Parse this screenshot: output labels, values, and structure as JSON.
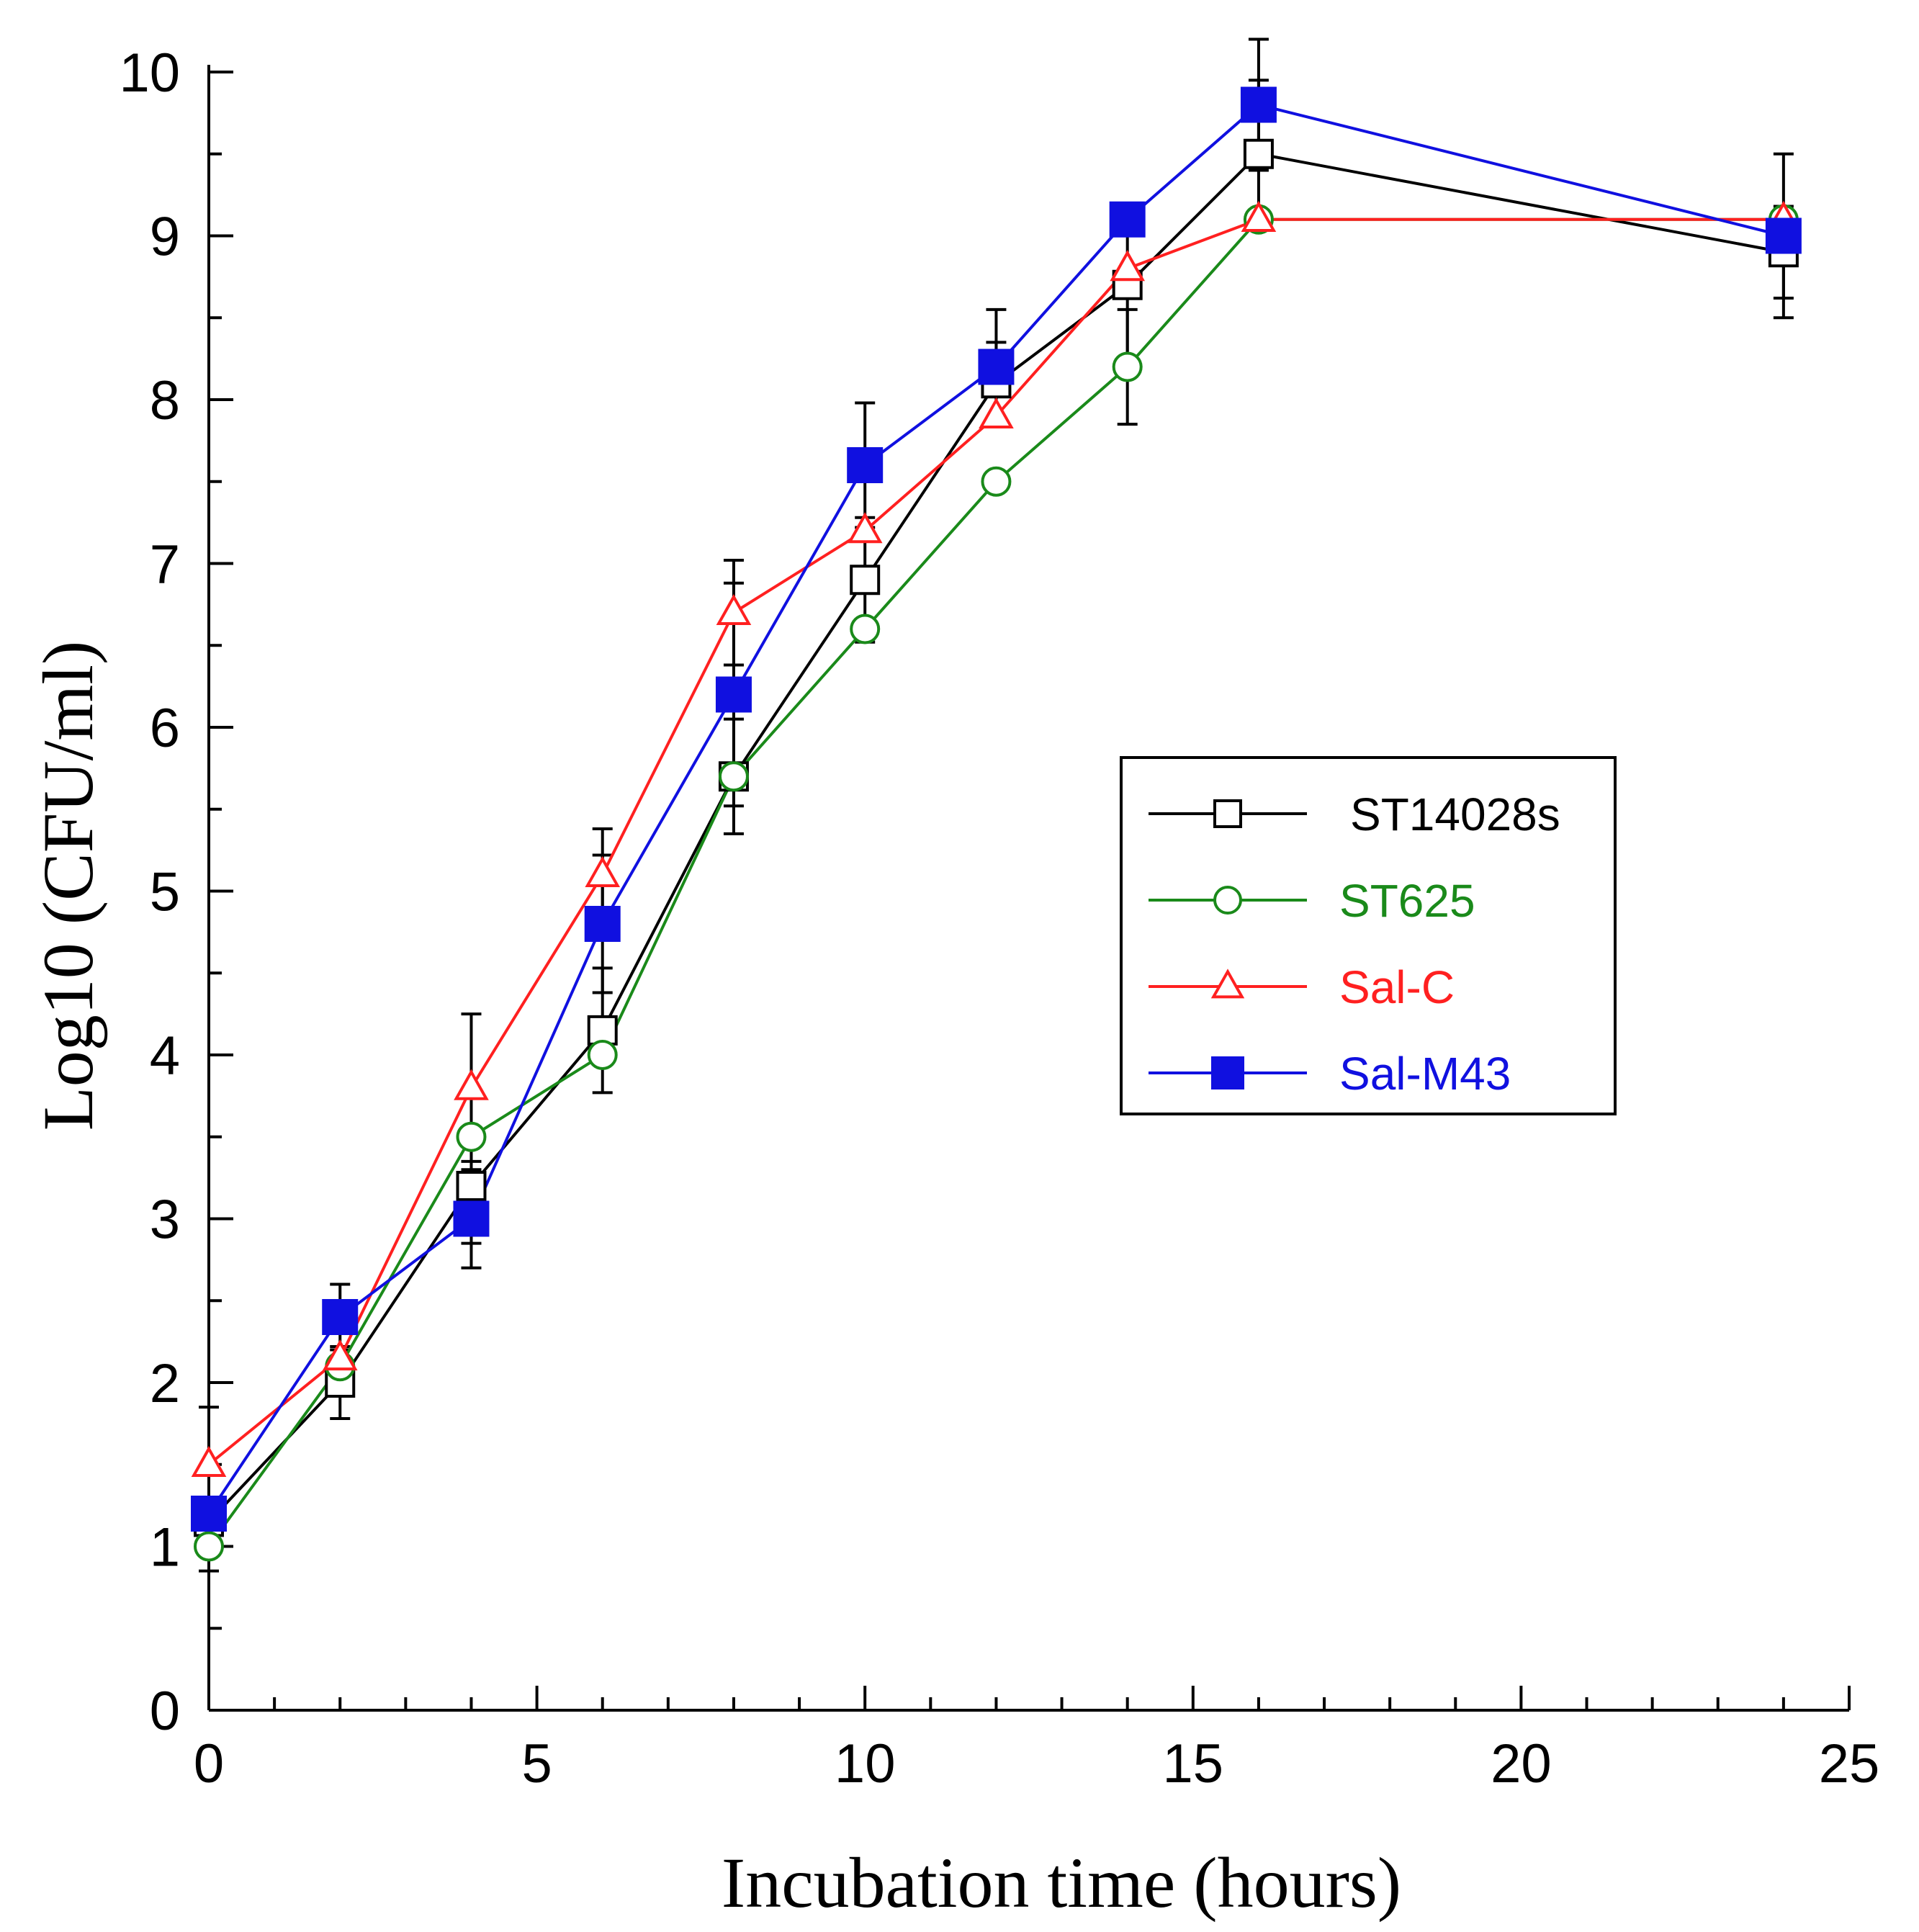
{
  "chart_data": {
    "type": "line",
    "title": "",
    "xlabel": "Incubation time (hours)",
    "ylabel": "Log10 (CFU/ml)",
    "xlim": [
      0,
      25
    ],
    "ylim": [
      0,
      10
    ],
    "x_ticks": [
      0,
      5,
      10,
      15,
      20,
      25
    ],
    "y_ticks": [
      0,
      1,
      2,
      3,
      4,
      5,
      6,
      7,
      8,
      9,
      10
    ],
    "x": [
      0,
      2,
      4,
      6,
      8,
      10,
      12,
      14,
      16,
      24
    ],
    "legend_position": "center-right",
    "series": [
      {
        "name": "ST14028s",
        "color": "#000000",
        "marker": "open-square",
        "values": [
          1.15,
          2.0,
          3.2,
          4.15,
          5.7,
          6.9,
          8.1,
          8.7,
          9.5,
          8.9
        ],
        "errors": [
          0.3,
          0.22,
          0.35,
          0.38,
          0.35,
          0.38,
          0.25,
          0.45,
          0.45,
          0.28
        ]
      },
      {
        "name": "ST625",
        "color": "#1a8a1a",
        "marker": "open-circle",
        "values": [
          1.0,
          2.1,
          3.5,
          4.0,
          5.7,
          6.6,
          7.5,
          8.2,
          9.1,
          9.1
        ],
        "errors": [
          0.1,
          0.1,
          0.1,
          0.1,
          0.1,
          0.1,
          0.1,
          0.35,
          0.1,
          0.1
        ]
      },
      {
        "name": "Sal-C",
        "color": "#ff2020",
        "marker": "open-triangle",
        "values": [
          1.5,
          2.15,
          3.8,
          5.1,
          6.7,
          7.2,
          7.9,
          8.8,
          9.1,
          9.1
        ],
        "errors": [
          0.35,
          0.1,
          0.45,
          0.28,
          0.32,
          0.1,
          0.1,
          0.1,
          0.1,
          0.1
        ]
      },
      {
        "name": "Sal-M43",
        "color": "#1010e0",
        "marker": "filled-square",
        "values": [
          1.2,
          2.4,
          3.0,
          4.8,
          6.2,
          7.6,
          8.2,
          9.1,
          9.8,
          9.0
        ],
        "errors": [
          0.1,
          0.2,
          0.3,
          0.42,
          0.68,
          0.38,
          0.35,
          0.1,
          0.4,
          0.5
        ]
      }
    ]
  }
}
